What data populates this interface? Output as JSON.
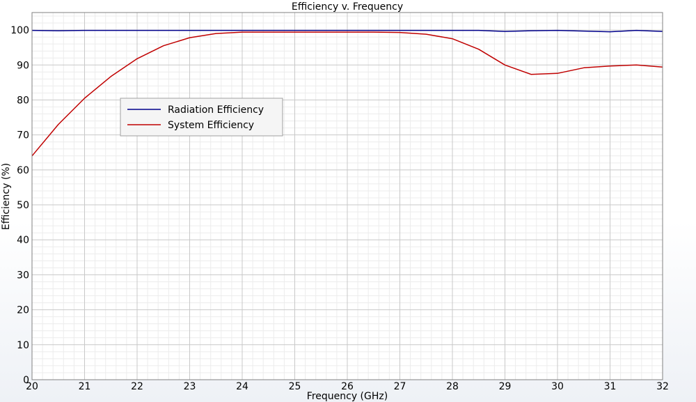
{
  "chart_data": {
    "type": "line",
    "title": "Efficiency v. Frequency",
    "xlabel": "Frequency (GHz)",
    "ylabel": "Efficiency (%)",
    "xlim": [
      20,
      32
    ],
    "ylim": [
      0,
      105
    ],
    "xticks": [
      20,
      21,
      22,
      23,
      24,
      25,
      26,
      27,
      28,
      29,
      30,
      31,
      32
    ],
    "yticks": [
      0,
      10,
      20,
      30,
      40,
      50,
      60,
      70,
      80,
      90,
      100
    ],
    "grid": true,
    "legend_position": "upper-left",
    "series": [
      {
        "name": "Radiation Efficiency",
        "color": "#00008b",
        "x": [
          20,
          20.5,
          21,
          21.5,
          22,
          22.5,
          23,
          23.5,
          24,
          24.5,
          25,
          25.5,
          26,
          26.5,
          27,
          27.5,
          28,
          28.5,
          29,
          29.5,
          30,
          30.5,
          31,
          31.5,
          32
        ],
        "y": [
          99.9,
          99.8,
          99.9,
          99.9,
          99.9,
          99.9,
          99.9,
          99.9,
          99.9,
          99.9,
          99.9,
          99.9,
          99.9,
          99.9,
          99.9,
          99.9,
          99.9,
          99.9,
          99.6,
          99.8,
          99.9,
          99.7,
          99.5,
          99.9,
          99.6
        ]
      },
      {
        "name": "System Efficiency",
        "color": "#c00000",
        "x": [
          20,
          20.5,
          21,
          21.5,
          22,
          22.5,
          23,
          23.5,
          24,
          24.5,
          25,
          25.5,
          26,
          26.5,
          27,
          27.5,
          28,
          28.5,
          29,
          29.5,
          30,
          30.5,
          31,
          31.5,
          32
        ],
        "y": [
          64,
          73,
          80.5,
          86.7,
          91.8,
          95.5,
          97.8,
          99.0,
          99.4,
          99.4,
          99.4,
          99.4,
          99.4,
          99.4,
          99.3,
          98.8,
          97.5,
          94.5,
          90.0,
          87.3,
          87.6,
          89.2,
          89.7,
          90.0,
          89.4
        ]
      }
    ]
  }
}
